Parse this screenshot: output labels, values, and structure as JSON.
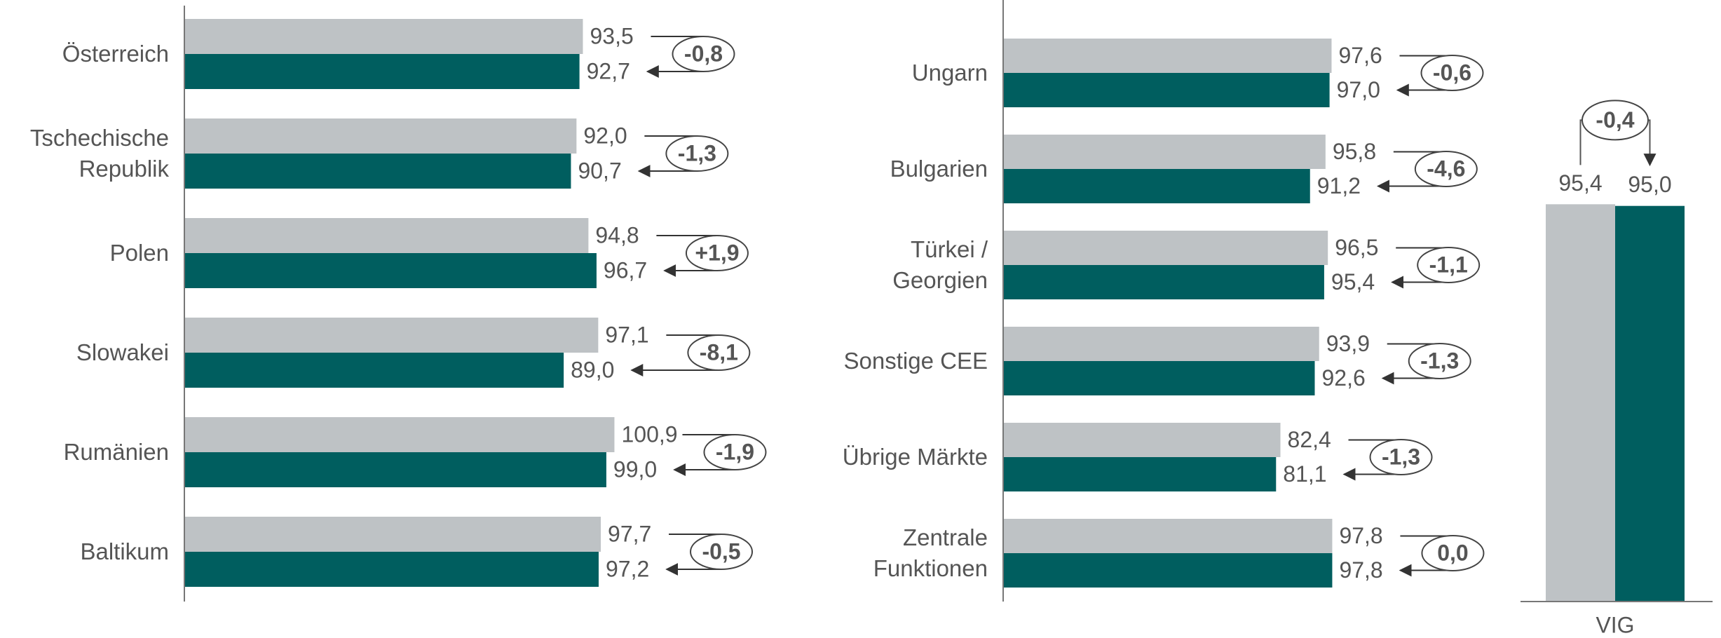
{
  "chart_data": [
    {
      "type": "bar",
      "orientation": "horizontal",
      "categories": [
        "Österreich",
        "Tschechische\nRepublik",
        "Polen",
        "Slowakei",
        "Rumänien",
        "Baltikum"
      ],
      "series": [
        {
          "color": "#bec2c5",
          "values": [
            93.5,
            92.0,
            94.8,
            97.1,
            100.9,
            97.7
          ],
          "value_labels": [
            "93,5",
            "92,0",
            "94,8",
            "97,1",
            "100,9",
            "97,7"
          ]
        },
        {
          "color": "#005e5f",
          "values": [
            92.7,
            90.7,
            96.7,
            89.0,
            99.0,
            97.2
          ],
          "value_labels": [
            "92,7",
            "90,7",
            "96,7",
            "89,0",
            "99,0",
            "97,2"
          ]
        }
      ],
      "annotations": [
        "-0,8",
        "-1,3",
        "+1,9",
        "-8,1",
        "-1,9",
        "-0,5"
      ],
      "xlim": [
        0,
        100
      ]
    },
    {
      "type": "bar",
      "orientation": "horizontal",
      "categories": [
        "Ungarn",
        "Bulgarien",
        "Türkei /\nGeorgien",
        "Sonstige CEE",
        "Übrige Märkte",
        "Zentrale\nFunktionen"
      ],
      "series": [
        {
          "color": "#bec2c5",
          "values": [
            97.6,
            95.8,
            96.5,
            93.9,
            82.4,
            97.8
          ],
          "value_labels": [
            "97,6",
            "95,8",
            "96,5",
            "93,9",
            "82,4",
            "97,8"
          ]
        },
        {
          "color": "#005e5f",
          "values": [
            97.0,
            91.2,
            95.4,
            92.6,
            81.1,
            97.8
          ],
          "value_labels": [
            "97,0",
            "91,2",
            "95,4",
            "92,6",
            "81,1",
            "97,8"
          ]
        }
      ],
      "annotations": [
        "-0,6",
        "-4,6",
        "-1,1",
        "-1,3",
        "-1,3",
        "0,0"
      ],
      "xlim": [
        0,
        100
      ]
    },
    {
      "type": "bar",
      "orientation": "vertical",
      "categories": [
        "VIG"
      ],
      "series": [
        {
          "color": "#bec2c5",
          "values": [
            95.4
          ],
          "value_labels": [
            "95,4"
          ]
        },
        {
          "color": "#005e5f",
          "values": [
            95.0
          ],
          "value_labels": [
            "95,0"
          ]
        }
      ],
      "annotations": [
        "-0,4"
      ],
      "ylim": [
        0,
        100
      ]
    }
  ]
}
